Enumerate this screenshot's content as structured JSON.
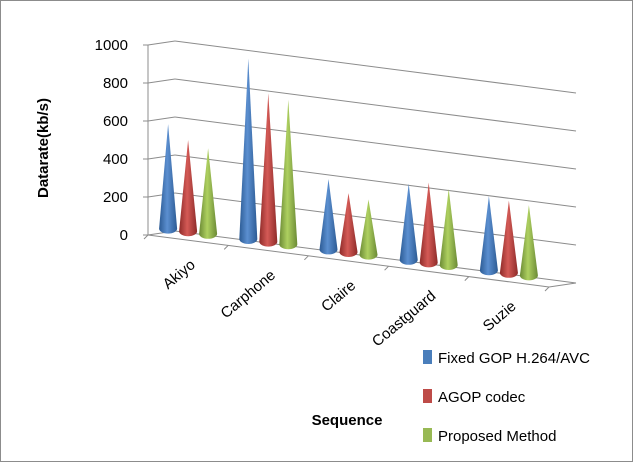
{
  "chart_data": {
    "type": "bar",
    "bar_shape": "cone",
    "perspective": "3d",
    "categories": [
      "Akiyo",
      "Carphone",
      "Claire",
      "Coastguard",
      "Suzie"
    ],
    "series": [
      {
        "name": "Fixed GOP H.264/AVC",
        "color": "#4a7ebb",
        "values": [
          550,
          950,
          370,
          400,
          390
        ]
      },
      {
        "name": "AGOP codec",
        "color": "#be4b48",
        "values": [
          480,
          780,
          310,
          420,
          380
        ]
      },
      {
        "name": "Proposed Method",
        "color": "#98b954",
        "values": [
          450,
          760,
          290,
          400,
          370
        ]
      }
    ],
    "ylabel": "Datarate(kb/s)",
    "xlabel": "Sequence",
    "ylim": [
      0,
      1000
    ],
    "yticks": [
      "0",
      "200",
      "400",
      "600",
      "800",
      "1000"
    ],
    "grid": true,
    "legend_position": "bottom-right"
  }
}
